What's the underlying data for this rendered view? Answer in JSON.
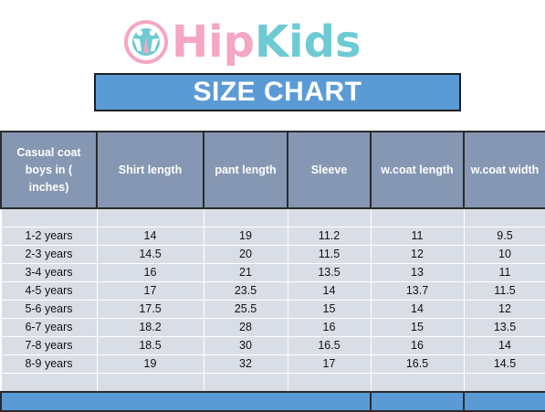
{
  "brand": {
    "name_part1": "Hip",
    "name_part2": "Kids",
    "colors": {
      "pink": "#f4a6c4",
      "teal": "#6ecad3"
    },
    "mark_icon": "kids-figures-icon"
  },
  "banner": {
    "title": "SIZE CHART",
    "color": "#5b9bd5"
  },
  "table": {
    "header_color": "#8597b2",
    "row_color": "#d9dee6",
    "columns": [
      "Casual coat boys in ( inches)",
      "Shirt length",
      "pant length",
      "Sleeve",
      "w.coat length",
      "w.coat width"
    ],
    "rows": [
      [
        "1-2 years",
        "14",
        "19",
        "11.2",
        "11",
        "9.5"
      ],
      [
        "2-3 years",
        "14.5",
        "20",
        "11.5",
        "12",
        "10"
      ],
      [
        "3-4 years",
        "16",
        "21",
        "13.5",
        "13",
        "11"
      ],
      [
        "4-5 years",
        "17",
        "23.5",
        "14",
        "13.7",
        "11.5"
      ],
      [
        "5-6 years",
        "17.5",
        "25.5",
        "15",
        "14",
        "12"
      ],
      [
        "6-7 years",
        "18.2",
        "28",
        "16",
        "15",
        "13.5"
      ],
      [
        "7-8 years",
        "18.5",
        "30",
        "16.5",
        "16",
        "14"
      ],
      [
        "8-9 years",
        "19",
        "32",
        "17",
        "16.5",
        "14.5"
      ]
    ]
  }
}
